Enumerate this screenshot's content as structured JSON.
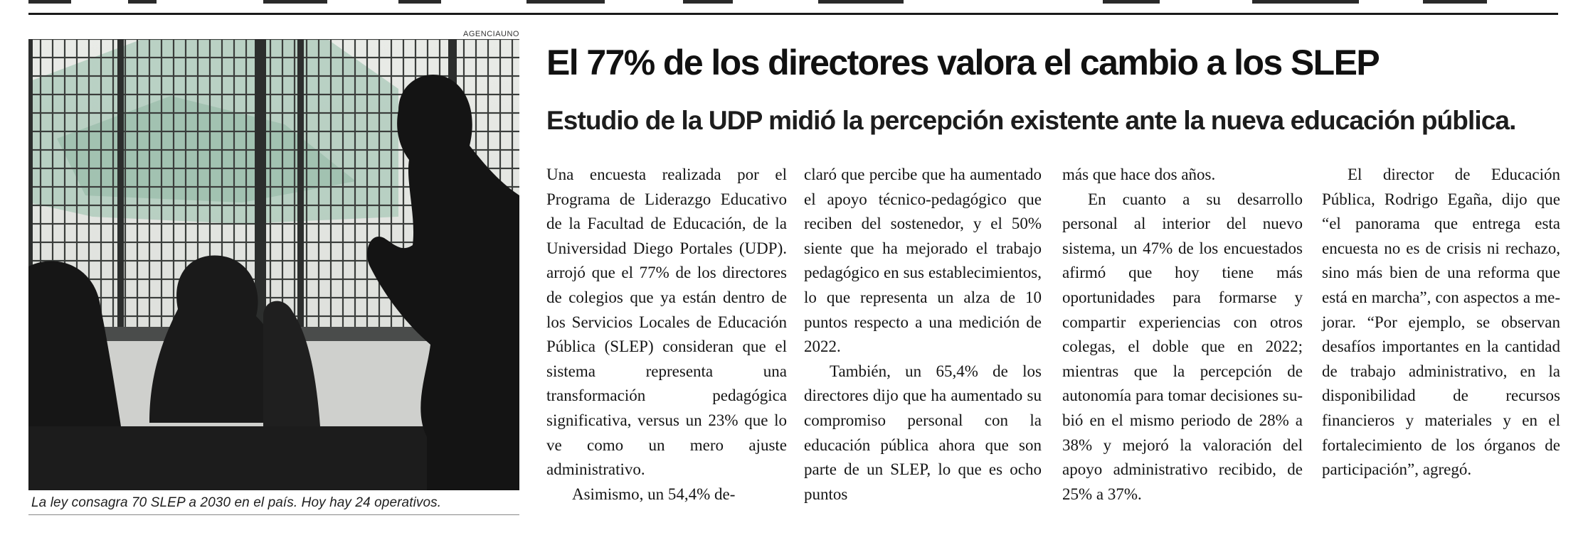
{
  "photo": {
    "credit": "AGENCIAUNO",
    "caption": "La ley consagra 70 SLEP a 2030 en el país. Hoy hay 24 operativos."
  },
  "article": {
    "headline": "El 77% de los directores valora el cambio a los SLEP",
    "subheadline": "Estudio de la UDP midió la percepción existente ante la nueva educación pública.",
    "columns": [
      {
        "paragraphs": [
          "Una encuesta realizada por el Programa de Liderazgo Edu­cativo de la Facultad de Edu­cación, de la Universidad Die­go Portales (UDP). arrojó que el 77% de los directores de co­legios que ya están dentro de los Servicios Locales de Edu­cación Pública (SLEP) conside­ran que el sistema represen­ta una transformación peda­gógica significativa, versus un 23% que lo ve como un mero ajuste administrativo.",
          "Asimismo, un 54,4% de-"
        ]
      },
      {
        "paragraphs": [
          "claró que percibe que ha au­mentado el apoyo técnico-pedagógico que reciben del sostenedor, y el 50% siente que ha mejorado el trabajo pedagógico en sus estableci­mientos, lo que representa un alza de 10 puntos respec­to a una medición de 2022.",
          "También, un 65,4% de los directores dijo que ha au­mentado su compromiso per­sonal con la educación públi­ca ahora que son parte de un SLEP, lo que es ocho puntos"
        ]
      },
      {
        "paragraphs": [
          "más que hace dos años.",
          "En cuanto a su desarrollo personal al interior del nuevo sistema, un 47% de los en­cuestados afirmó que hoy tie­ne más oportunidades para formarse y compartir expe­riencias con otros colegas, el doble que en 2022; mientras que la percepción de autono­mía para tomar decisiones su­bió en el mismo periodo de 28% a 38% y mejoró la valo­ración del apoyo administra­tivo recibido, de 25% a 37%."
        ]
      },
      {
        "paragraphs": [
          "El director de Educación Pública, Rodrigo Egaña, dijo que “el panorama que entre­ga esta encuesta no es de cri­sis ni rechazo, sino más bien de una reforma que está en marcha”, con aspectos a me­jorar. “Por ejemplo, se obser­van desafíos importantes en la cantidad de trabajo admi­nistrativo, en la disponibili­dad de recursos financieros y materiales y en el fortaleci­miento de los órganos de participación”, agregó."
        ]
      }
    ]
  }
}
